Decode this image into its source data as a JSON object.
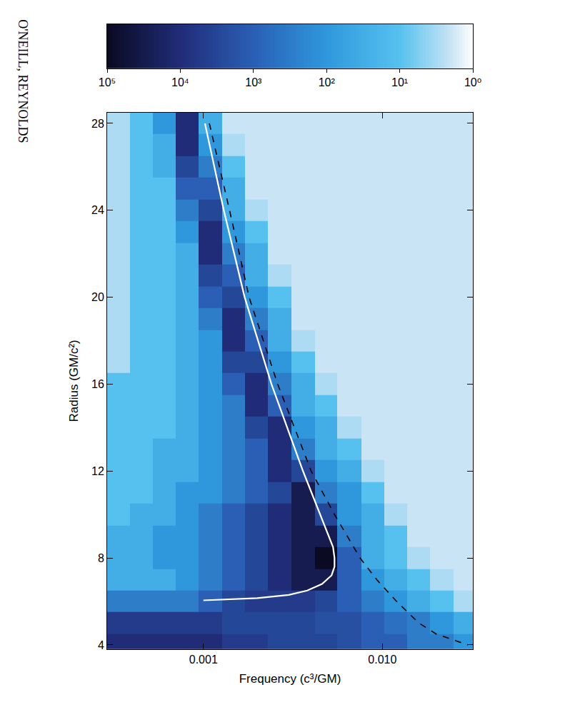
{
  "header": "O'NEILL, REYNOLDS",
  "chart_data": {
    "type": "heatmap",
    "log": true,
    "x_label": "Frequency (c³/GM)",
    "y_label": "Radius (GM/c²)",
    "xlim": [
      0.00029,
      0.032
    ],
    "xticks": [
      {
        "value": 0.001,
        "label": "0.001"
      },
      {
        "value": 0.01,
        "label": "0.010"
      }
    ],
    "ylim": [
      3.8,
      28.5
    ],
    "yticks": [
      4,
      8,
      12,
      16,
      20,
      24,
      28
    ],
    "x_edges": [
      0.00029,
      0.00039,
      0.00052,
      0.0007,
      0.00094,
      0.00127,
      0.0017,
      0.0023,
      0.0031,
      0.0042,
      0.0056,
      0.0076,
      0.0102,
      0.0137,
      0.0185,
      0.0249,
      0.032
    ],
    "y_edges": [
      3.8,
      4.5,
      5.5,
      6.5,
      7.5,
      8.5,
      9.5,
      10.5,
      11.5,
      12.5,
      13.5,
      14.5,
      15.5,
      16.5,
      17.5,
      18.5,
      19.5,
      20.5,
      21.5,
      22.5,
      23.5,
      24.5,
      25.5,
      26.5,
      27.5,
      28.5
    ],
    "cells": [
      [
        10000,
        10000,
        10000,
        10000,
        10000,
        5000,
        5000,
        3000,
        3000,
        3000,
        2000,
        1000,
        1000,
        300,
        300,
        100
      ],
      [
        5000,
        5000,
        5000,
        5000,
        5000,
        3000,
        3000,
        3000,
        3000,
        2000,
        2000,
        1000,
        500,
        300,
        100,
        30
      ],
      [
        300,
        300,
        300,
        300,
        1000,
        3000,
        5000,
        5000,
        5000,
        3000,
        1000,
        300,
        100,
        30,
        10,
        3
      ],
      [
        30,
        30,
        30,
        100,
        300,
        1000,
        3000,
        10000,
        30000,
        30000,
        1000,
        100,
        30,
        10,
        3,
        2
      ],
      [
        30,
        30,
        100,
        100,
        300,
        1000,
        3000,
        10000,
        30000,
        100000,
        1000,
        30,
        10,
        3,
        2,
        2
      ],
      [
        30,
        30,
        100,
        100,
        300,
        1000,
        3000,
        10000,
        30000,
        30000,
        300,
        30,
        10,
        2,
        2,
        2
      ],
      [
        10,
        30,
        30,
        100,
        300,
        1000,
        3000,
        10000,
        30000,
        3000,
        100,
        30,
        3,
        2,
        2,
        2
      ],
      [
        10,
        10,
        30,
        100,
        100,
        300,
        1000,
        3000,
        30000,
        300,
        100,
        10,
        2,
        2,
        2,
        2
      ],
      [
        10,
        10,
        30,
        30,
        100,
        300,
        1000,
        10000,
        3000,
        100,
        30,
        3,
        2,
        2,
        2,
        2
      ],
      [
        10,
        10,
        30,
        30,
        100,
        300,
        1000,
        10000,
        300,
        30,
        10,
        2,
        2,
        2,
        2,
        2
      ],
      [
        10,
        10,
        10,
        30,
        100,
        300,
        3000,
        10000,
        100,
        30,
        3,
        2,
        2,
        2,
        2,
        2
      ],
      [
        10,
        10,
        10,
        30,
        100,
        300,
        10000,
        1000,
        30,
        10,
        2,
        2,
        2,
        2,
        2,
        2
      ],
      [
        10,
        10,
        10,
        30,
        100,
        1000,
        10000,
        300,
        30,
        3,
        2,
        2,
        2,
        2,
        2,
        2
      ],
      [
        3,
        10,
        10,
        30,
        100,
        3000,
        3000,
        100,
        10,
        2,
        2,
        2,
        2,
        2,
        2,
        2
      ],
      [
        3,
        10,
        10,
        30,
        100,
        10000,
        1000,
        30,
        3,
        2,
        2,
        2,
        2,
        2,
        2,
        2
      ],
      [
        3,
        10,
        10,
        30,
        300,
        10000,
        300,
        30,
        2,
        2,
        2,
        2,
        2,
        2,
        2,
        2
      ],
      [
        3,
        10,
        10,
        30,
        1000,
        3000,
        100,
        10,
        2,
        2,
        2,
        2,
        2,
        2,
        2,
        2
      ],
      [
        3,
        10,
        10,
        30,
        3000,
        1000,
        30,
        3,
        2,
        2,
        2,
        2,
        2,
        2,
        2,
        2
      ],
      [
        3,
        10,
        10,
        30,
        10000,
        300,
        30,
        2,
        2,
        2,
        2,
        2,
        2,
        2,
        2,
        2
      ],
      [
        3,
        10,
        10,
        100,
        10000,
        100,
        10,
        2,
        2,
        2,
        2,
        2,
        2,
        2,
        2,
        2
      ],
      [
        3,
        10,
        10,
        300,
        3000,
        30,
        3,
        2,
        2,
        2,
        2,
        2,
        2,
        2,
        2,
        2
      ],
      [
        3,
        10,
        10,
        1000,
        1000,
        30,
        2,
        2,
        2,
        2,
        2,
        2,
        2,
        2,
        2,
        2
      ],
      [
        3,
        10,
        30,
        3000,
        300,
        10,
        2,
        2,
        2,
        2,
        2,
        2,
        2,
        2,
        2,
        2
      ],
      [
        3,
        10,
        30,
        10000,
        100,
        3,
        2,
        2,
        2,
        2,
        2,
        2,
        2,
        2,
        2,
        2
      ],
      [
        3,
        10,
        100,
        10000,
        30,
        2,
        2,
        2,
        2,
        2,
        2,
        2,
        2,
        2,
        2,
        2
      ]
    ],
    "colorbar": {
      "range": [
        1,
        100000
      ],
      "ticks": [
        {
          "value": 1,
          "label": "10⁰"
        },
        {
          "value": 10,
          "label": "10¹"
        },
        {
          "value": 100,
          "label": "10²"
        },
        {
          "value": 1000,
          "label": "10³"
        },
        {
          "value": 10000,
          "label": "10⁴"
        },
        {
          "value": 100000,
          "label": "10⁵"
        }
      ]
    },
    "series": [
      {
        "type": "line",
        "color": "#ffffff",
        "line_style": "solid",
        "x": [
          0.00102,
          0.0013,
          0.0017,
          0.0024,
          0.0036,
          0.0045,
          0.005,
          0.0053,
          0.0054,
          0.0054,
          0.0052,
          0.0046,
          0.0038,
          0.003,
          0.002,
          0.001
        ],
        "y": [
          28,
          24,
          20,
          16,
          12,
          10,
          9,
          8.5,
          8,
          7.6,
          7.2,
          6.8,
          6.5,
          6.3,
          6.15,
          6.05
        ]
      },
      {
        "type": "line",
        "color": "#000000",
        "line_style": "dash",
        "x": [
          0.00108,
          0.0014,
          0.0018,
          0.0026,
          0.004,
          0.0054,
          0.0075,
          0.0093,
          0.012,
          0.016,
          0.02,
          0.03
        ],
        "y": [
          28,
          24,
          20,
          16,
          12,
          10,
          8,
          7,
          6,
          5,
          4.5,
          4
        ]
      }
    ]
  }
}
